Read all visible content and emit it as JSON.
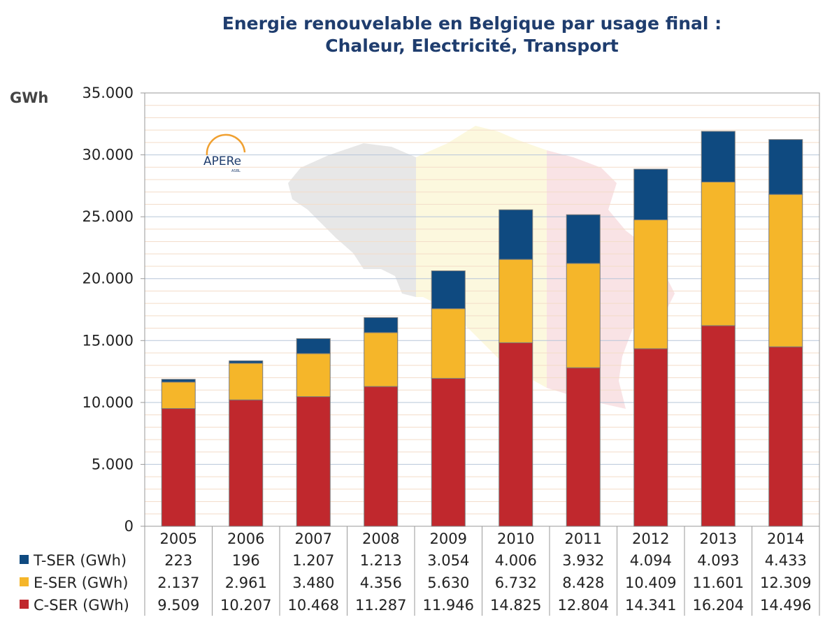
{
  "chart_data": {
    "type": "bar",
    "stacked": true,
    "title": "Energie renouvelable en Belgique par usage final :",
    "subtitle": "Chaleur, Electricité, Transport",
    "ylabel": "GWh",
    "ylim": [
      0,
      35000
    ],
    "yticks": [
      {
        "value": 0,
        "label": "0"
      },
      {
        "value": 5000,
        "label": "5.000"
      },
      {
        "value": 10000,
        "label": "10.000"
      },
      {
        "value": 15000,
        "label": "15.000"
      },
      {
        "value": 20000,
        "label": "20.000"
      },
      {
        "value": 25000,
        "label": "25.000"
      },
      {
        "value": 30000,
        "label": "30.000"
      },
      {
        "value": 35000,
        "label": "35.000"
      }
    ],
    "grid": true,
    "legend": "data-table",
    "categories": [
      "2005",
      "2006",
      "2007",
      "2008",
      "2009",
      "2010",
      "2011",
      "2012",
      "2013",
      "2014"
    ],
    "series": [
      {
        "name": "T-SER (GWh)",
        "color": "#0f4a80",
        "values": [
          223,
          196,
          1207,
          1213,
          3054,
          4006,
          3932,
          4094,
          4093,
          4433
        ],
        "labels": [
          "223",
          "196",
          "1.207",
          "1.213",
          "3.054",
          "4.006",
          "3.932",
          "4.094",
          "4.093",
          "4.433"
        ]
      },
      {
        "name": "E-SER (GWh)",
        "color": "#f5b62a",
        "values": [
          2137,
          2961,
          3480,
          4356,
          5630,
          6732,
          8428,
          10409,
          11601,
          12309
        ],
        "labels": [
          "2.137",
          "2.961",
          "3.480",
          "4.356",
          "5.630",
          "6.732",
          "8.428",
          "10.409",
          "11.601",
          "12.309"
        ]
      },
      {
        "name": "C-SER (GWh)",
        "color": "#c0282d",
        "values": [
          9509,
          10207,
          10468,
          11287,
          11946,
          14825,
          12804,
          14341,
          16204,
          14496
        ],
        "labels": [
          "9.509",
          "10.207",
          "10.468",
          "11.287",
          "11.946",
          "14.825",
          "12.804",
          "14.341",
          "16.204",
          "14.496"
        ]
      }
    ],
    "stack_order_bottom_to_top": [
      "C-SER (GWh)",
      "E-SER (GWh)",
      "T-SER (GWh)"
    ]
  },
  "logo": {
    "text": "APERe",
    "small_text": "ASBL"
  },
  "colors": {
    "title": "#1f3d6e",
    "grid_minor": "#f3dcc8",
    "grid_major": "#b7c6d9",
    "axis": "#9a9a9a"
  }
}
